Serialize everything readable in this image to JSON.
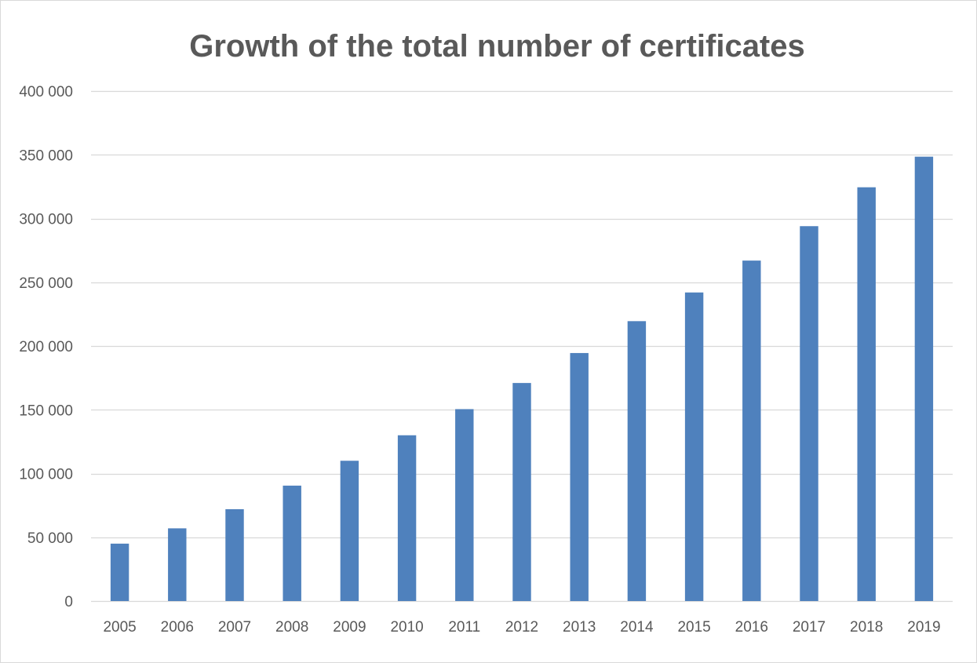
{
  "chart_data": {
    "type": "bar",
    "title": "Growth of the total number of certificates",
    "xlabel": "",
    "ylabel": "",
    "categories": [
      "2005",
      "2006",
      "2007",
      "2008",
      "2009",
      "2010",
      "2011",
      "2012",
      "2013",
      "2014",
      "2015",
      "2016",
      "2017",
      "2018",
      "2019"
    ],
    "values": [
      45000,
      57000,
      72000,
      90500,
      110000,
      130000,
      150500,
      171000,
      194500,
      219500,
      242000,
      267000,
      294000,
      324500,
      348500
    ],
    "ylim": [
      0,
      400000
    ],
    "yticks": [
      0,
      50000,
      100000,
      150000,
      200000,
      250000,
      300000,
      350000,
      400000
    ],
    "ytick_labels": [
      "0",
      "50 000",
      "100 000",
      "150 000",
      "200 000",
      "250 000",
      "300 000",
      "350 000",
      "400 000"
    ],
    "grid": true,
    "legend": "none",
    "bar_color": "#4f81bd",
    "grid_color": "#d9d9d9"
  }
}
